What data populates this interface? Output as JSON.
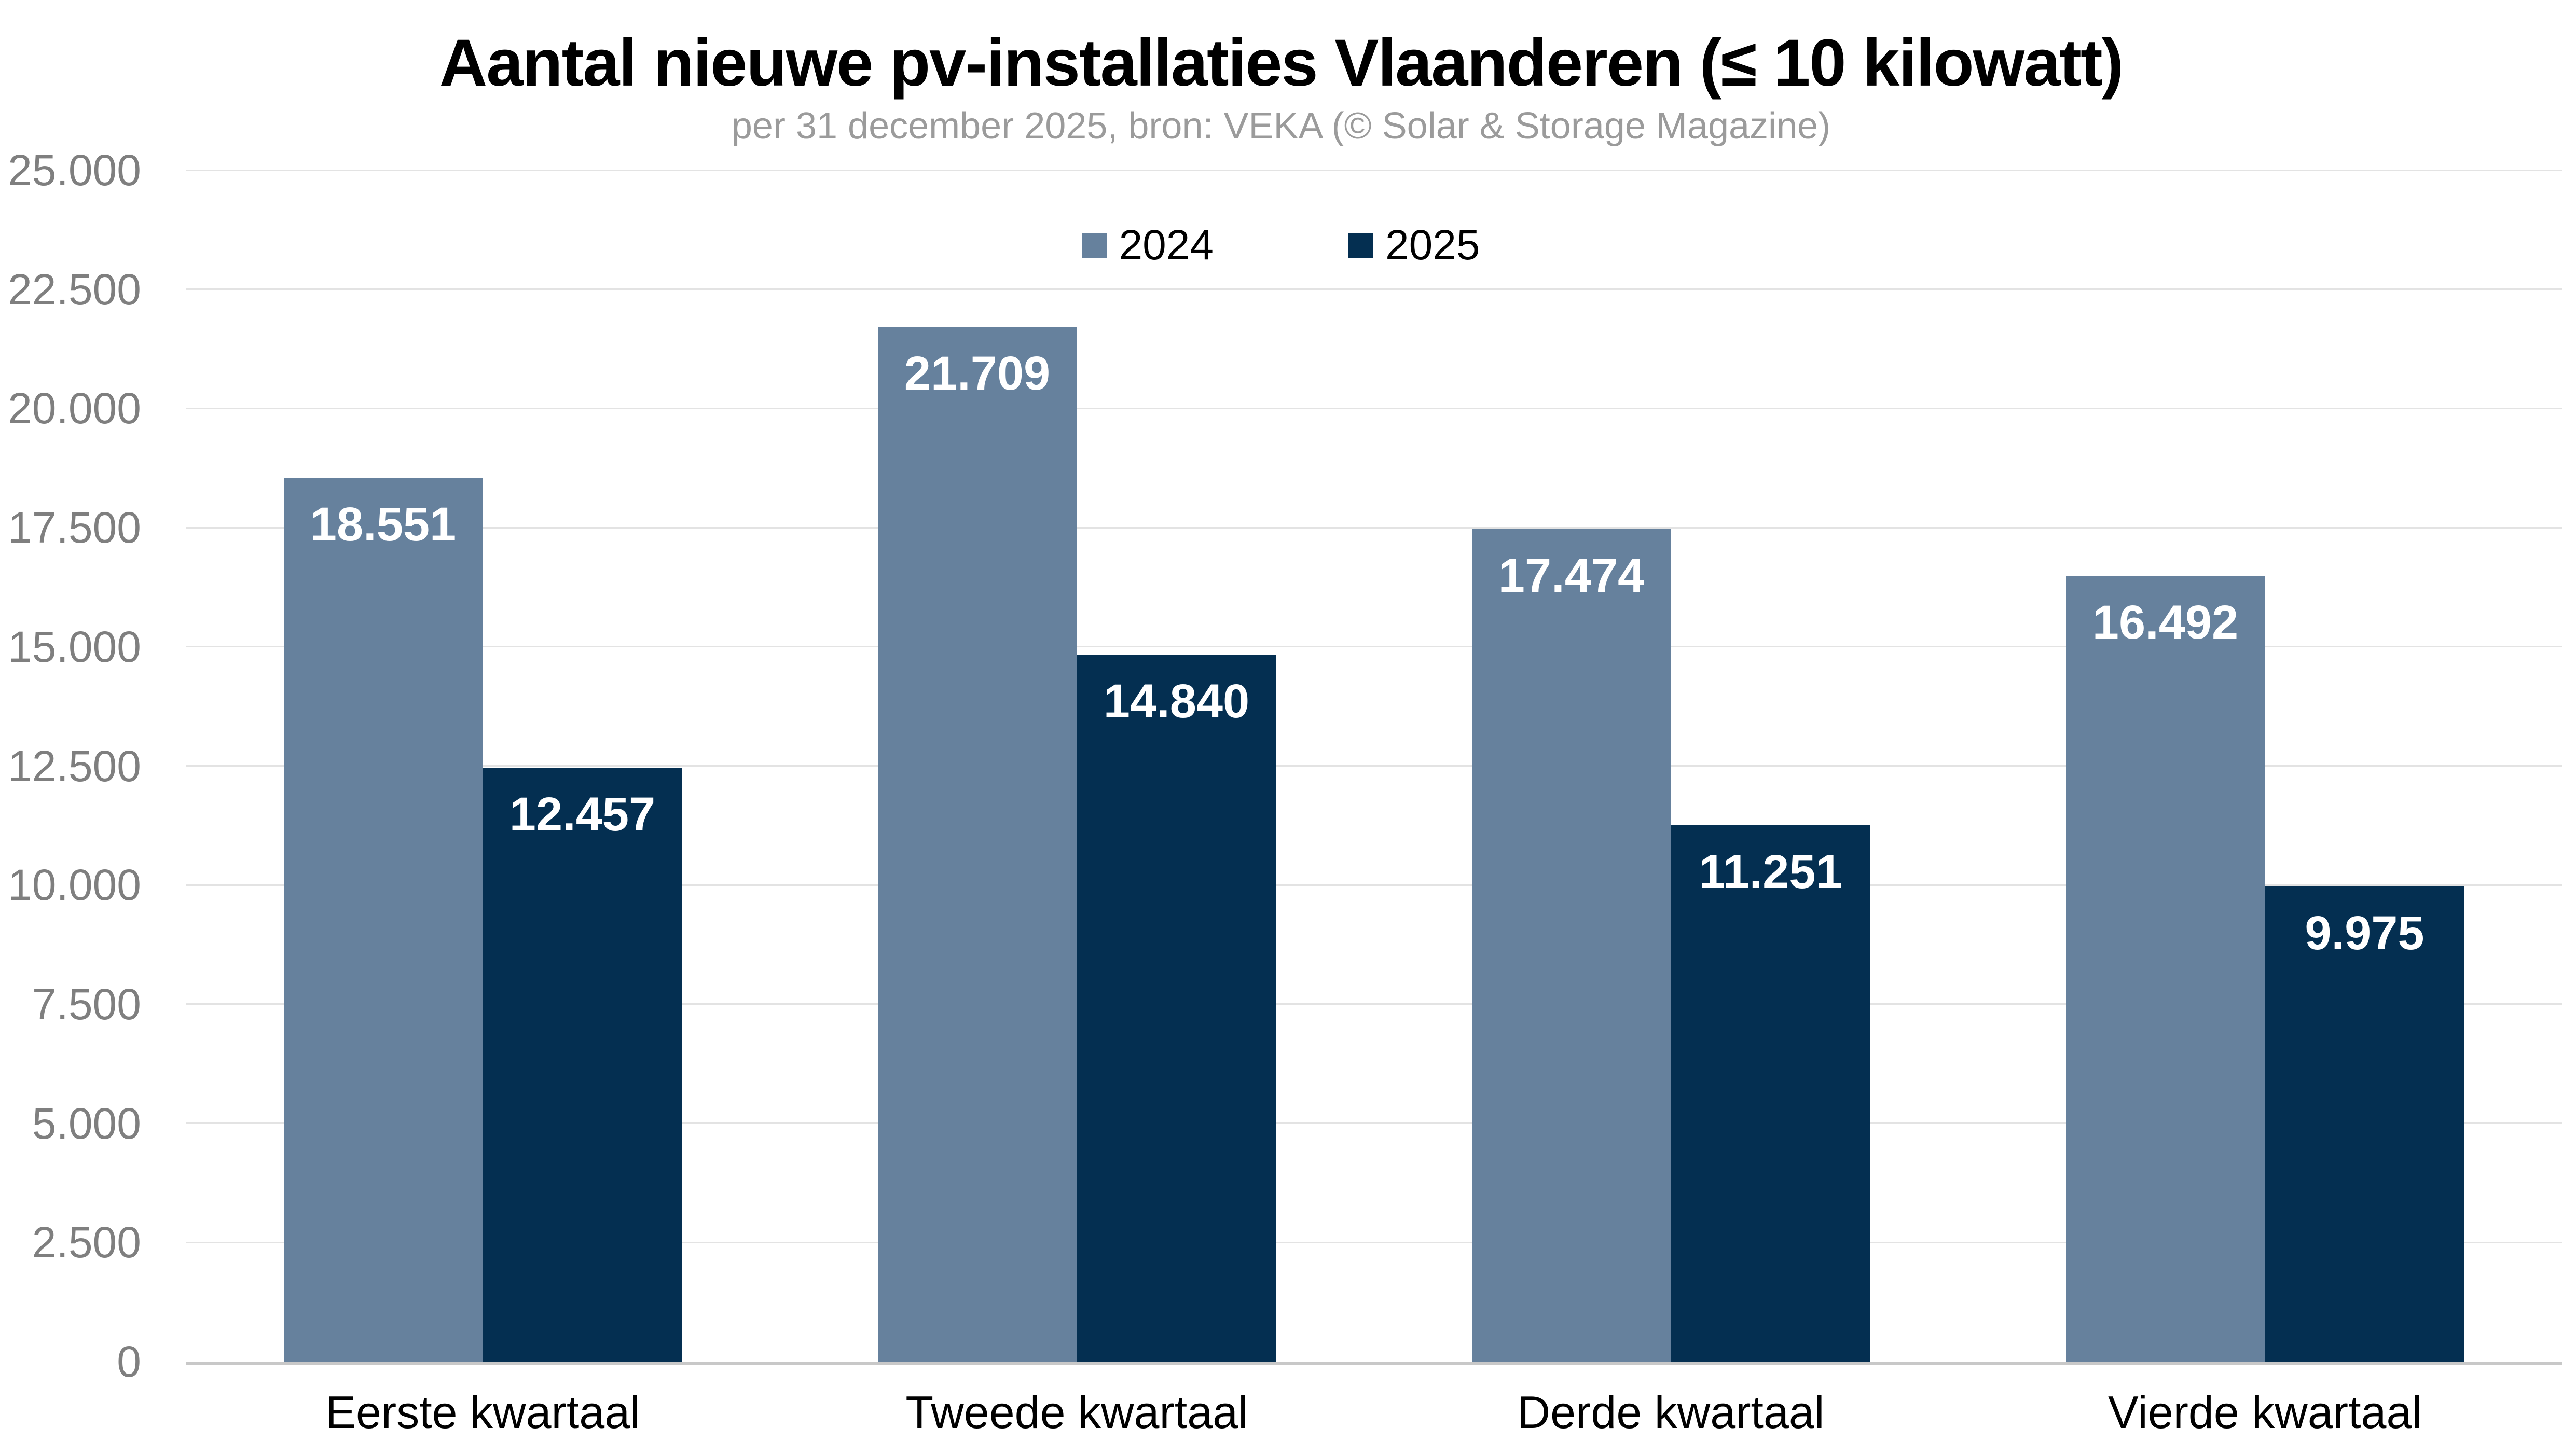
{
  "header": {
    "title": "Aantal nieuwe pv-installaties Vlaanderen (≤ 10 kilowatt)",
    "subtitle": "per 31 december 2025, bron: VEKA (© Solar & Storage Magazine)"
  },
  "chart_data": {
    "type": "bar",
    "title": "Aantal nieuwe pv-installaties Vlaanderen (≤ 10 kilowatt)",
    "subtitle": "per 31 december 2025, bron: VEKA (© Solar & Storage Magazine)",
    "categories": [
      "Eerste kwartaal",
      "Tweede kwartaal",
      "Derde kwartaal",
      "Vierde kwartaal"
    ],
    "series": [
      {
        "name": "2024",
        "color": "#66819d",
        "values": [
          18551,
          21709,
          17474,
          16492
        ],
        "value_labels": [
          "18.551",
          "21.709",
          "17.474",
          "16.492"
        ]
      },
      {
        "name": "2025",
        "color": "#042f51",
        "values": [
          12457,
          14840,
          11251,
          9975
        ],
        "value_labels": [
          "12.457",
          "14.840",
          "11.251",
          "9.975"
        ]
      }
    ],
    "y_axis": {
      "min": 0,
      "max": 25000,
      "tick_step": 2500,
      "tick_labels": [
        "0",
        "2.500",
        "5.000",
        "7.500",
        "10.000",
        "12.500",
        "15.000",
        "17.500",
        "20.000",
        "22.500",
        "25.000"
      ]
    },
    "grid": true,
    "legend_position": "top-center",
    "value_label_color": "#ffffff"
  },
  "styles": {
    "background": "#ffffff",
    "title_color": "#000000",
    "subtitle_color": "#9b9b9b",
    "grid_color": "#e3e3e3",
    "axis_line_color": "#c8c8c8",
    "y_tick_label_color": "#7f7f7f",
    "category_label_color": "#000000"
  }
}
